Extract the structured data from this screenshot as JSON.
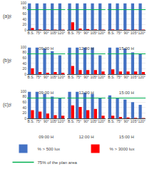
{
  "chart_data": [
    {
      "type": "bar",
      "categories": [
        "B.S.",
        "75°",
        "90°",
        "105°",
        "120°"
      ],
      "series": [
        {
          "name": "% > 500 lux",
          "color": "#4472C4",
          "values": [
            98,
            98,
            98,
            98,
            98
          ]
        },
        {
          "name": "% > 3000 lux",
          "color": "#FF0000",
          "values": [
            7,
            2,
            1,
            1,
            1
          ]
        }
      ],
      "hline": {
        "name": "75% of the plan area",
        "color": "#00B050",
        "value": 75
      },
      "xlabel": "09:00 H",
      "ylabel": "%",
      "annotation": "(a)",
      "ylim": [
        0,
        100
      ],
      "yticks": [
        0,
        20,
        40,
        60,
        80,
        100
      ],
      "grid": true,
      "legend": "bottom"
    },
    {
      "type": "bar",
      "categories": [
        "B.S.",
        "75°",
        "90°",
        "105°",
        "120°"
      ],
      "series": [
        {
          "name": "% > 500 lux",
          "color": "#4472C4",
          "values": [
            98,
            98,
            98,
            98,
            98
          ]
        },
        {
          "name": "% > 3000 lux",
          "color": "#FF0000",
          "values": [
            28,
            5,
            3,
            2,
            1
          ]
        }
      ],
      "hline": {
        "name": "75% of the plan area",
        "color": "#00B050",
        "value": 75
      },
      "xlabel": "12:00 H",
      "ylim": [
        0,
        100
      ],
      "yticks": [
        0,
        20,
        40,
        60,
        80,
        100
      ],
      "grid": true,
      "tick_labels": "x",
      "legend": "bottom"
    },
    {
      "type": "bar",
      "categories": [
        "B.S.",
        "75°",
        "90°",
        "105°",
        "120°"
      ],
      "series": [
        {
          "name": "% > 500 lux",
          "color": "#4472C4",
          "values": [
            98,
            98,
            98,
            98,
            98
          ]
        },
        {
          "name": "% > 3000 lux",
          "color": "#FF0000",
          "values": [
            2,
            1,
            1,
            1,
            1
          ]
        }
      ],
      "hline": {
        "name": "75% of the plan area",
        "color": "#00B050",
        "value": 75
      },
      "xlabel": "15:00 H",
      "ylim": [
        0,
        100
      ],
      "yticks": [
        0,
        20,
        40,
        60,
        80,
        100
      ],
      "grid": true,
      "tick_labels": "x",
      "legend": "bottom"
    },
    {
      "type": "bar",
      "categories": [
        "B.S.",
        "75°",
        "90°",
        "105°",
        "120°"
      ],
      "series": [
        {
          "name": "% > 500 lux",
          "color": "#4472C4",
          "values": [
            98,
            98,
            95,
            85,
            70
          ]
        },
        {
          "name": "% > 3000 lux",
          "color": "#FF0000",
          "values": [
            22,
            8,
            5,
            8,
            5
          ]
        }
      ],
      "hline": {
        "name": "75% of the plan area",
        "color": "#00B050",
        "value": 75
      },
      "xlabel": "09:00 H",
      "ylabel": "%",
      "annotation": "(b)",
      "ylim": [
        0,
        100
      ],
      "yticks": [
        0,
        20,
        40,
        60,
        80,
        100
      ],
      "grid": true,
      "legend": "bottom"
    },
    {
      "type": "bar",
      "categories": [
        "B.S.",
        "75°",
        "90°",
        "105°",
        "120°"
      ],
      "series": [
        {
          "name": "% > 500 lux",
          "color": "#4472C4",
          "values": [
            98,
            98,
            98,
            98,
            70
          ]
        },
        {
          "name": "% > 3000 lux",
          "color": "#FF0000",
          "values": [
            30,
            15,
            15,
            15,
            10
          ]
        }
      ],
      "hline": {
        "name": "75% of the plan area",
        "color": "#00B050",
        "value": 75
      },
      "xlabel": "12:00 H",
      "ylim": [
        0,
        100
      ],
      "yticks": [
        0,
        20,
        40,
        60,
        80,
        100
      ],
      "grid": true,
      "tick_labels": "x",
      "legend": "bottom"
    },
    {
      "type": "bar",
      "categories": [
        "B.S.",
        "75°",
        "90°",
        "105°",
        "120°"
      ],
      "series": [
        {
          "name": "% > 500 lux",
          "color": "#4472C4",
          "values": [
            98,
            98,
            95,
            80,
            75
          ]
        },
        {
          "name": "% > 3000 lux",
          "color": "#FF0000",
          "values": [
            18,
            10,
            10,
            10,
            8
          ]
        }
      ],
      "hline": {
        "name": "75% of the plan area",
        "color": "#00B050",
        "value": 75
      },
      "xlabel": "15:00 H",
      "ylim": [
        0,
        100
      ],
      "yticks": [
        0,
        20,
        40,
        60,
        80,
        100
      ],
      "grid": true,
      "tick_labels": "x",
      "legend": "bottom"
    },
    {
      "type": "bar",
      "categories": [
        "B.S.",
        "75°",
        "90°",
        "105°",
        "120°"
      ],
      "series": [
        {
          "name": "% > 500 lux",
          "color": "#4472C4",
          "values": [
            98,
            98,
            90,
            80,
            75
          ]
        },
        {
          "name": "% > 3000 lux",
          "color": "#FF0000",
          "values": [
            30,
            25,
            18,
            12,
            10
          ]
        }
      ],
      "hline": {
        "name": "75% of the plan area",
        "color": "#00B050",
        "value": 75
      },
      "xlabel": "09:00 H",
      "ylabel": "%",
      "annotation": "(c)",
      "ylim": [
        0,
        100
      ],
      "yticks": [
        0,
        20,
        40,
        60,
        80,
        100
      ],
      "grid": true,
      "legend": "bottom"
    },
    {
      "type": "bar",
      "categories": [
        "B.S.",
        "75°",
        "90°",
        "105°",
        "120°"
      ],
      "series": [
        {
          "name": "% > 500 lux",
          "color": "#4472C4",
          "values": [
            98,
            98,
            95,
            90,
            75
          ]
        },
        {
          "name": "% > 3000 lux",
          "color": "#FF0000",
          "values": [
            48,
            42,
            30,
            35,
            10
          ]
        }
      ],
      "hline": {
        "name": "75% of the plan area",
        "color": "#00B050",
        "value": 75
      },
      "xlabel": "12:00 H",
      "ylim": [
        0,
        100
      ],
      "yticks": [
        0,
        20,
        40,
        60,
        80,
        100
      ],
      "grid": true,
      "tick_labels": "x",
      "legend": "bottom"
    },
    {
      "type": "bar",
      "categories": [
        "B.S.",
        "75°",
        "90°",
        "105°",
        "120°"
      ],
      "series": [
        {
          "name": "% > 500 lux",
          "color": "#4472C4",
          "values": [
            85,
            75,
            70,
            60,
            50
          ]
        },
        {
          "name": "% > 3000 lux",
          "color": "#FF0000",
          "values": [
            10,
            5,
            3,
            2,
            1
          ]
        }
      ],
      "hline": {
        "name": "75% of the plan area",
        "color": "#00B050",
        "value": 75
      },
      "xlabel": "15:00 H",
      "ylim": [
        0,
        100
      ],
      "yticks": [
        0,
        20,
        40,
        60,
        80,
        100
      ],
      "grid": true,
      "tick_labels": "x",
      "legend": "bottom"
    }
  ]
}
